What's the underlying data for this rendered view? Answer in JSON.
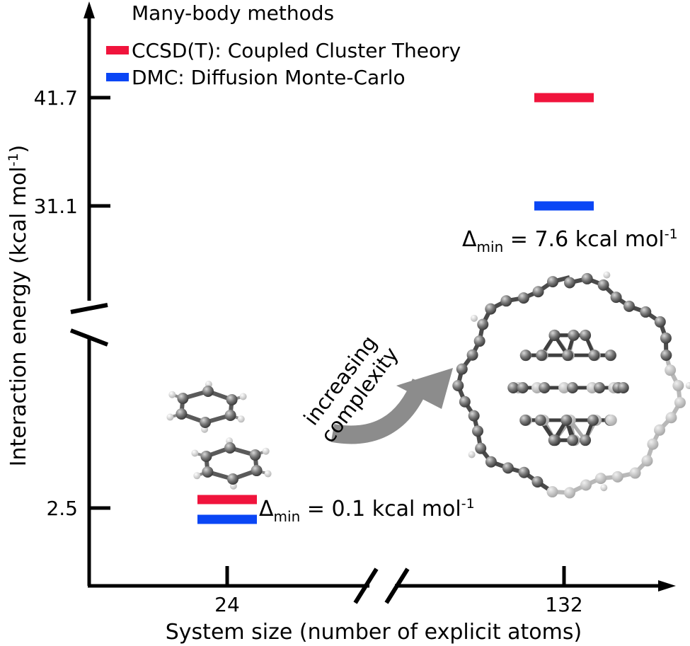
{
  "chart_data": {
    "type": "scatter",
    "title": "",
    "xlabel": "System size (number of explicit atoms)",
    "ylabel": "Interaction energy (kcal mol",
    "ylabel_sup": "-1",
    "ylabel_close": ")",
    "x_ticks": [
      "24",
      "132"
    ],
    "y_ticks": [
      "2.5",
      "31.1",
      "41.7"
    ],
    "x_axis_break": true,
    "y_axis_break": true,
    "legend": {
      "title": "Many-body methods",
      "position": "top-left",
      "entries": [
        {
          "name": "CCSD(T): Coupled Cluster Theory",
          "color": "#f0143c"
        },
        {
          "name": "DMC: Diffusion Monte-Carlo",
          "color": "#0a46f5"
        }
      ]
    },
    "series": [
      {
        "name": "CCSD(T)",
        "color": "#f0143c",
        "points": [
          {
            "x": 24,
            "y": 2.6
          },
          {
            "x": 132,
            "y": 41.7
          }
        ]
      },
      {
        "name": "DMC",
        "color": "#0a46f5",
        "points": [
          {
            "x": 24,
            "y": 2.5
          },
          {
            "x": 132,
            "y": 31.1
          }
        ]
      }
    ],
    "annotations": {
      "small": {
        "prefix": "Δ",
        "sub": "min",
        "text": " = 0.1 kcal mol",
        "sup": "-1"
      },
      "large": {
        "prefix": "Δ",
        "sub": "min",
        "text": " = 7.6 kcal mol",
        "sup": "-1"
      },
      "arrow_line1": "increasing",
      "arrow_line2": "complexity"
    },
    "images": [
      "benzene-dimer",
      "fullerene-in-nanoring"
    ]
  }
}
